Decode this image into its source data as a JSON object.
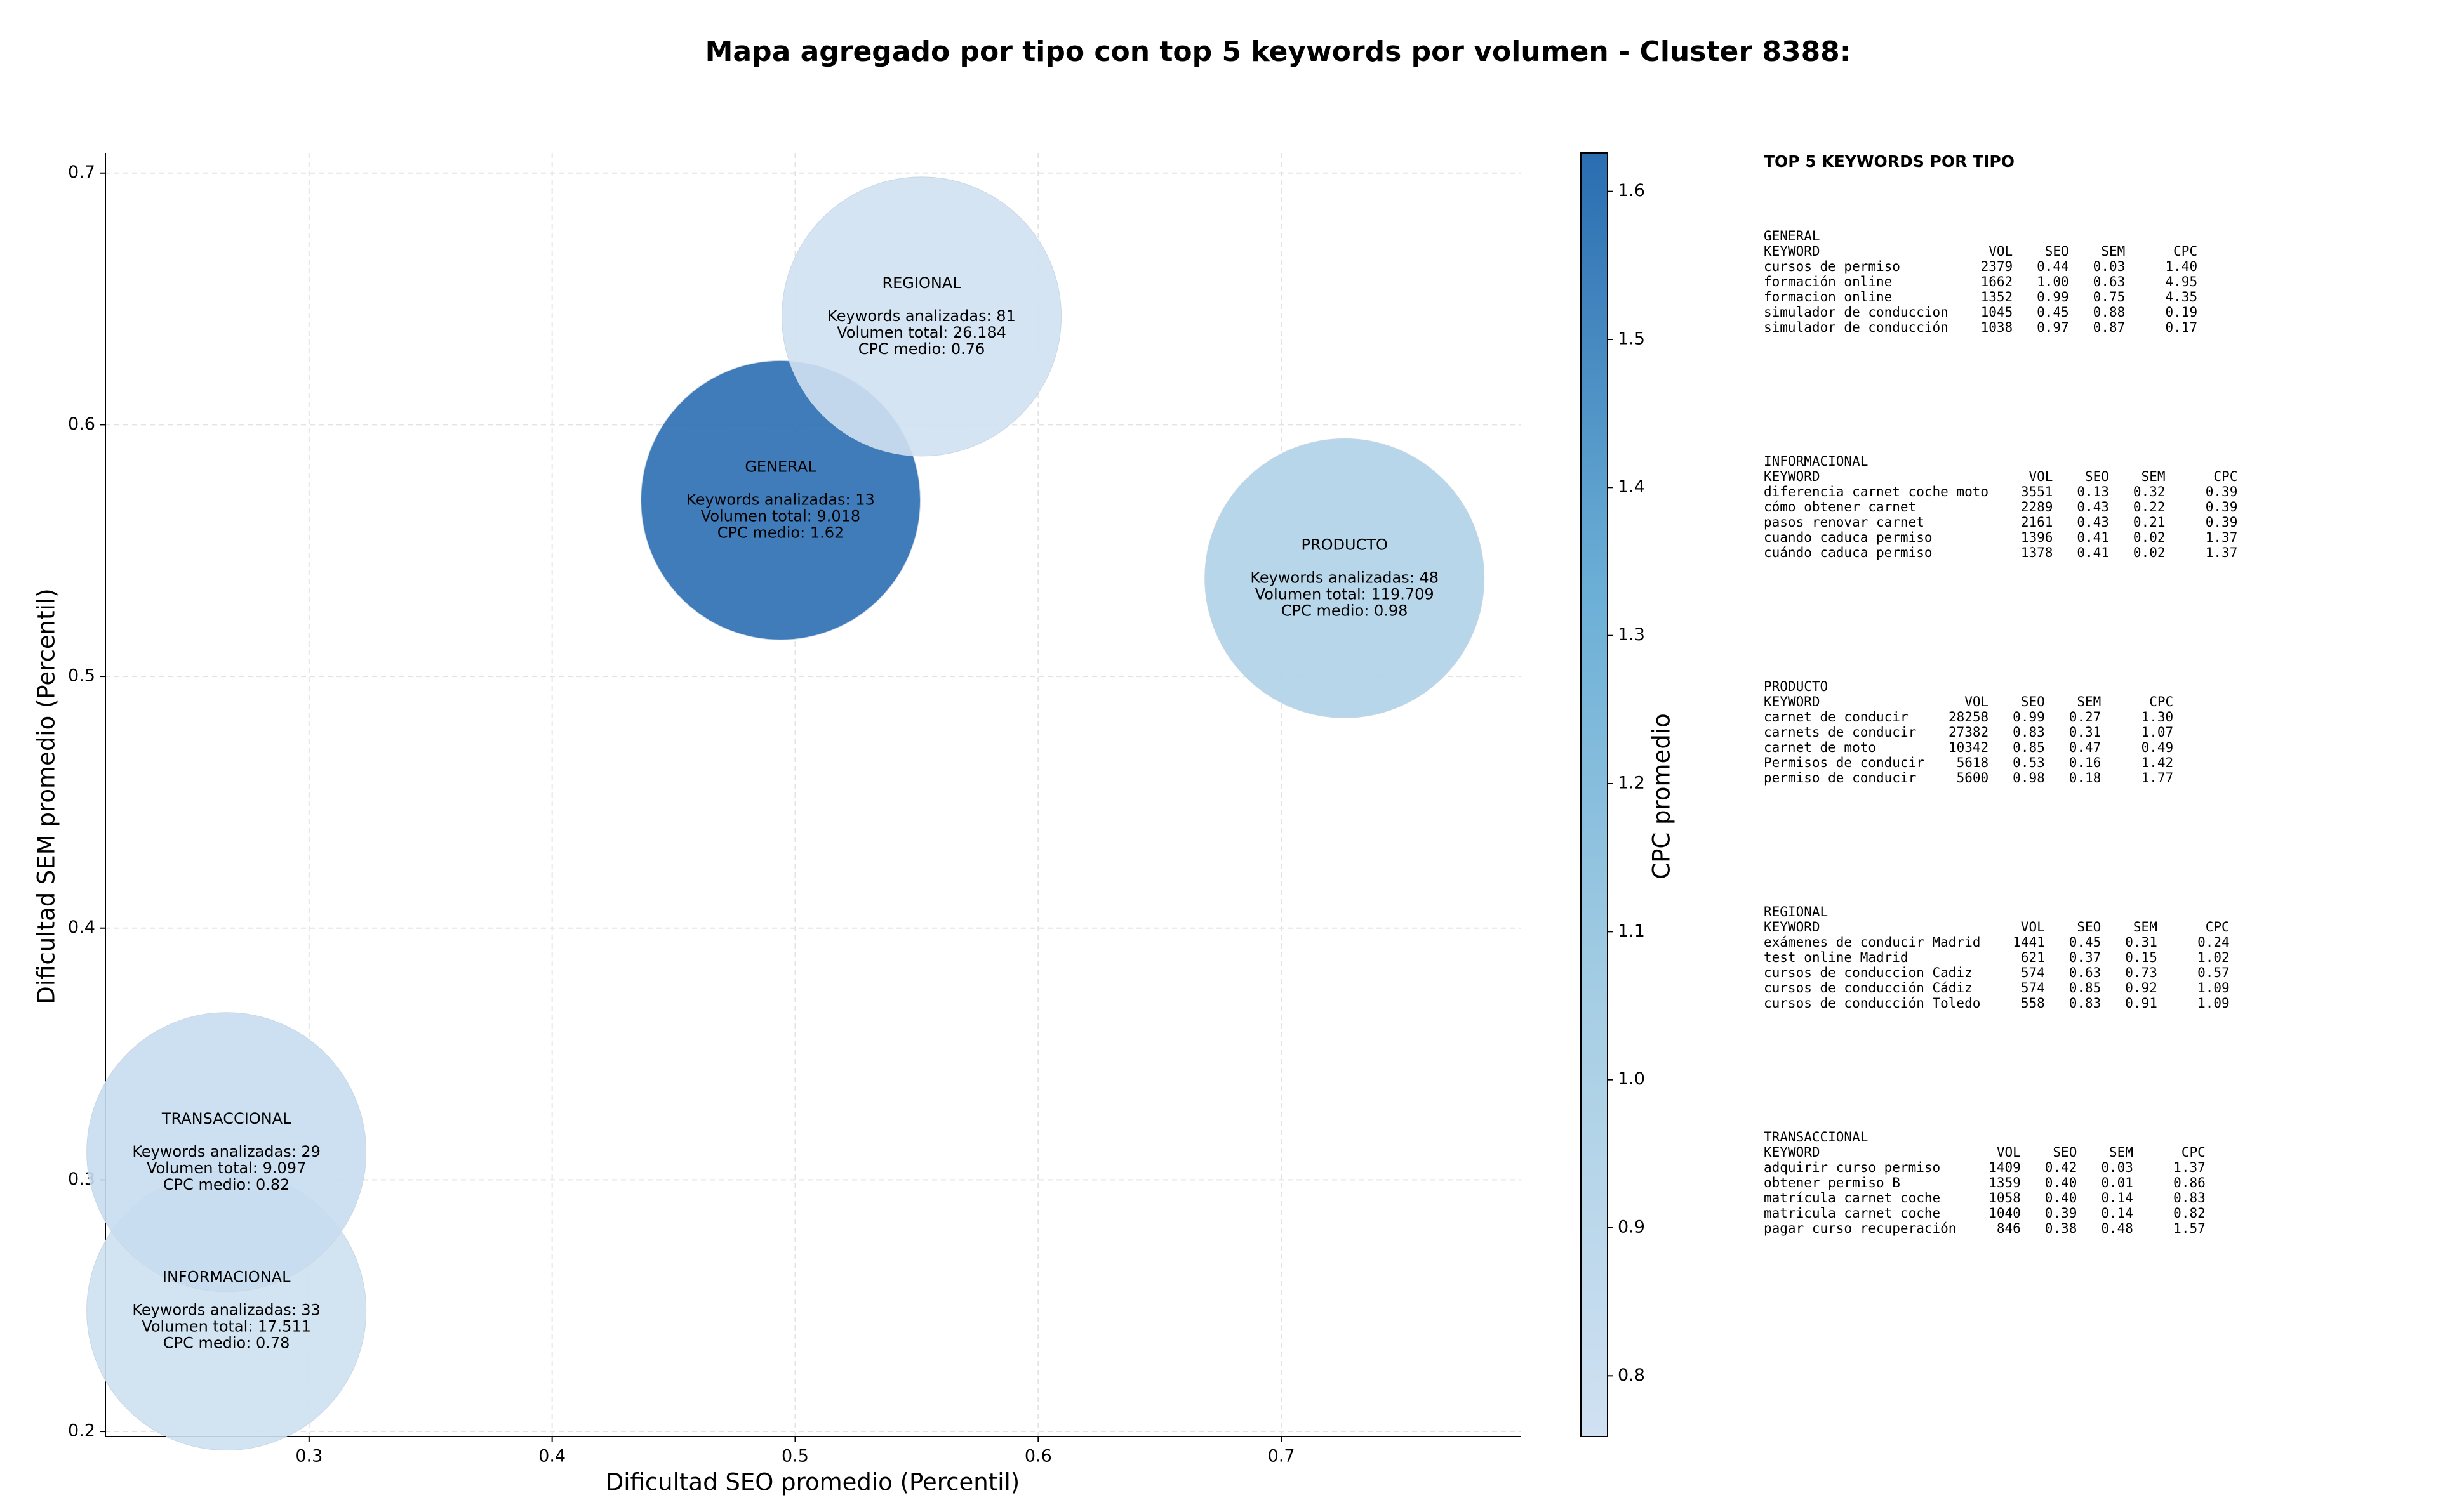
{
  "chart_data": {
    "type": "bubble",
    "title": "Mapa agregado por tipo con top 5 keywords por volumen - Cluster 8388:",
    "x_label": "Dificultad SEO promedio (Percentil)",
    "y_label": "Dificultad SEM promedio (Percentil)",
    "colorbar_label": "CPC promedio",
    "categories": [
      "GENERAL",
      "INFORMACIONAL",
      "PRODUCTO",
      "REGIONAL",
      "TRANSACCIONAL"
    ],
    "x": [
      0.494,
      0.266,
      0.726,
      0.552,
      0.266
    ],
    "values": [
      0.57,
      0.248,
      0.539,
      0.643,
      0.311
    ],
    "color_values": [
      1.62,
      0.78,
      0.98,
      0.76,
      0.82
    ],
    "annotations": [
      [
        "Keywords analizadas: 13",
        "Volumen total: 9.018",
        "CPC medio: 1.62"
      ],
      [
        "Keywords analizadas: 33",
        "Volumen total: 17.511",
        "CPC medio: 0.78"
      ],
      [
        "Keywords analizadas: 48",
        "Volumen total: 119.709",
        "CPC medio: 0.98"
      ],
      [
        "Keywords analizadas: 81",
        "Volumen total: 26.184",
        "CPC medio: 0.76"
      ],
      [
        "Keywords analizadas: 29",
        "Volumen total: 9.097",
        "CPC medio: 0.82"
      ]
    ],
    "colormap": [
      "#d0e1f2",
      "#a6cee4",
      "#6aaed6",
      "#2a6db1"
    ],
    "clim": [
      0.759,
      1.626
    ],
    "cticks": [
      0.8,
      0.9,
      {
        "value": 1.0,
        "label": "1.0"
      },
      1.1,
      1.2,
      1.3,
      1.4,
      1.5,
      1.6
    ],
    "xlim": [
      0.2162,
      0.7987
    ],
    "xticks": [
      0.3,
      0.4,
      0.5,
      0.6,
      0.7
    ],
    "ylim": [
      0.198,
      0.708
    ],
    "yticks": [
      0.2,
      0.3,
      0.4,
      0.5,
      0.6,
      0.7
    ],
    "grid": true
  },
  "panel": {
    "title": "TOP 5 KEYWORDS POR TIPO",
    "header": [
      "KEYWORD",
      "VOL",
      "SEO",
      "SEM",
      "CPC"
    ],
    "groups": [
      {
        "name": "GENERAL",
        "rows": [
          [
            "cursos de permiso",
            "2379",
            "0.44",
            "0.03",
            "1.40"
          ],
          [
            "formación online",
            "1662",
            "1.00",
            "0.63",
            "4.95"
          ],
          [
            "formacion online",
            "1352",
            "0.99",
            "0.75",
            "4.35"
          ],
          [
            "simulador de conduccion",
            "1045",
            "0.45",
            "0.88",
            "0.19"
          ],
          [
            "simulador de conducción",
            "1038",
            "0.97",
            "0.87",
            "0.17"
          ]
        ]
      },
      {
        "name": "INFORMACIONAL",
        "rows": [
          [
            "diferencia carnet coche moto",
            "3551",
            "0.13",
            "0.32",
            "0.39"
          ],
          [
            "cómo obtener carnet",
            "2289",
            "0.43",
            "0.22",
            "0.39"
          ],
          [
            "pasos renovar carnet",
            "2161",
            "0.43",
            "0.21",
            "0.39"
          ],
          [
            "cuando caduca permiso",
            "1396",
            "0.41",
            "0.02",
            "1.37"
          ],
          [
            "cuándo caduca permiso",
            "1378",
            "0.41",
            "0.02",
            "1.37"
          ]
        ]
      },
      {
        "name": "PRODUCTO",
        "rows": [
          [
            "carnet de conducir",
            "28258",
            "0.99",
            "0.27",
            "1.30"
          ],
          [
            "carnets de conducir",
            "27382",
            "0.83",
            "0.31",
            "1.07"
          ],
          [
            "carnet de moto",
            "10342",
            "0.85",
            "0.47",
            "0.49"
          ],
          [
            "Permisos de conducir",
            "5618",
            "0.53",
            "0.16",
            "1.42"
          ],
          [
            "permiso de conducir",
            "5600",
            "0.98",
            "0.18",
            "1.77"
          ]
        ]
      },
      {
        "name": "REGIONAL",
        "rows": [
          [
            "exámenes de conducir Madrid",
            "1441",
            "0.45",
            "0.31",
            "0.24"
          ],
          [
            "test online Madrid",
            "621",
            "0.37",
            "0.15",
            "1.02"
          ],
          [
            "cursos de conduccion Cadiz",
            "574",
            "0.63",
            "0.73",
            "0.57"
          ],
          [
            "cursos de conducción Cádiz",
            "574",
            "0.85",
            "0.92",
            "1.09"
          ],
          [
            "cursos de conducción Toledo",
            "558",
            "0.83",
            "0.91",
            "1.09"
          ]
        ]
      },
      {
        "name": "TRANSACCIONAL",
        "rows": [
          [
            "adquirir curso permiso",
            "1409",
            "0.42",
            "0.03",
            "1.37"
          ],
          [
            "obtener permiso B",
            "1359",
            "0.40",
            "0.01",
            "0.86"
          ],
          [
            "matrícula carnet coche",
            "1058",
            "0.40",
            "0.14",
            "0.83"
          ],
          [
            "matricula carnet coche",
            "1040",
            "0.39",
            "0.14",
            "0.82"
          ],
          [
            "pagar curso recuperación",
            "846",
            "0.38",
            "0.48",
            "1.57"
          ]
        ]
      }
    ]
  }
}
